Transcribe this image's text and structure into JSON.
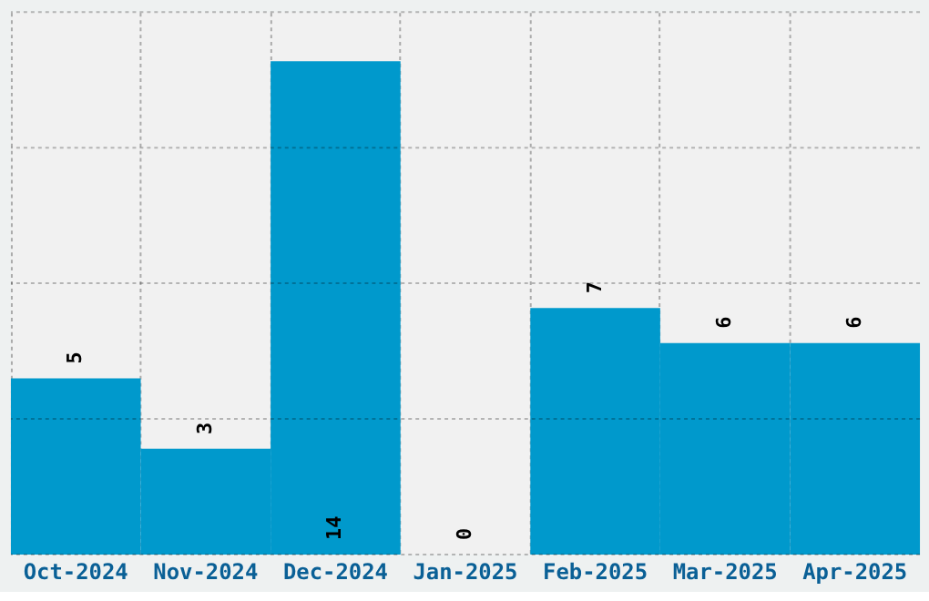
{
  "chart_data": {
    "type": "bar",
    "categories": [
      "Oct-2024",
      "Nov-2024",
      "Dec-2024",
      "Jan-2025",
      "Feb-2025",
      "Mar-2025",
      "Apr-2025"
    ],
    "values": [
      5,
      3,
      14,
      0,
      7,
      6,
      6
    ],
    "color": "#0099cc",
    "ylim": [
      0,
      15.4
    ],
    "yticks": [
      {
        "value": 0,
        "label": null
      },
      {
        "value": 3.85,
        "label": null
      },
      {
        "value": 7.7,
        "label": null
      },
      {
        "value": 11.55,
        "label": null
      },
      {
        "value": 15.4,
        "label": null
      }
    ],
    "grid": true,
    "data_labels": true,
    "tick_labels": "x"
  }
}
